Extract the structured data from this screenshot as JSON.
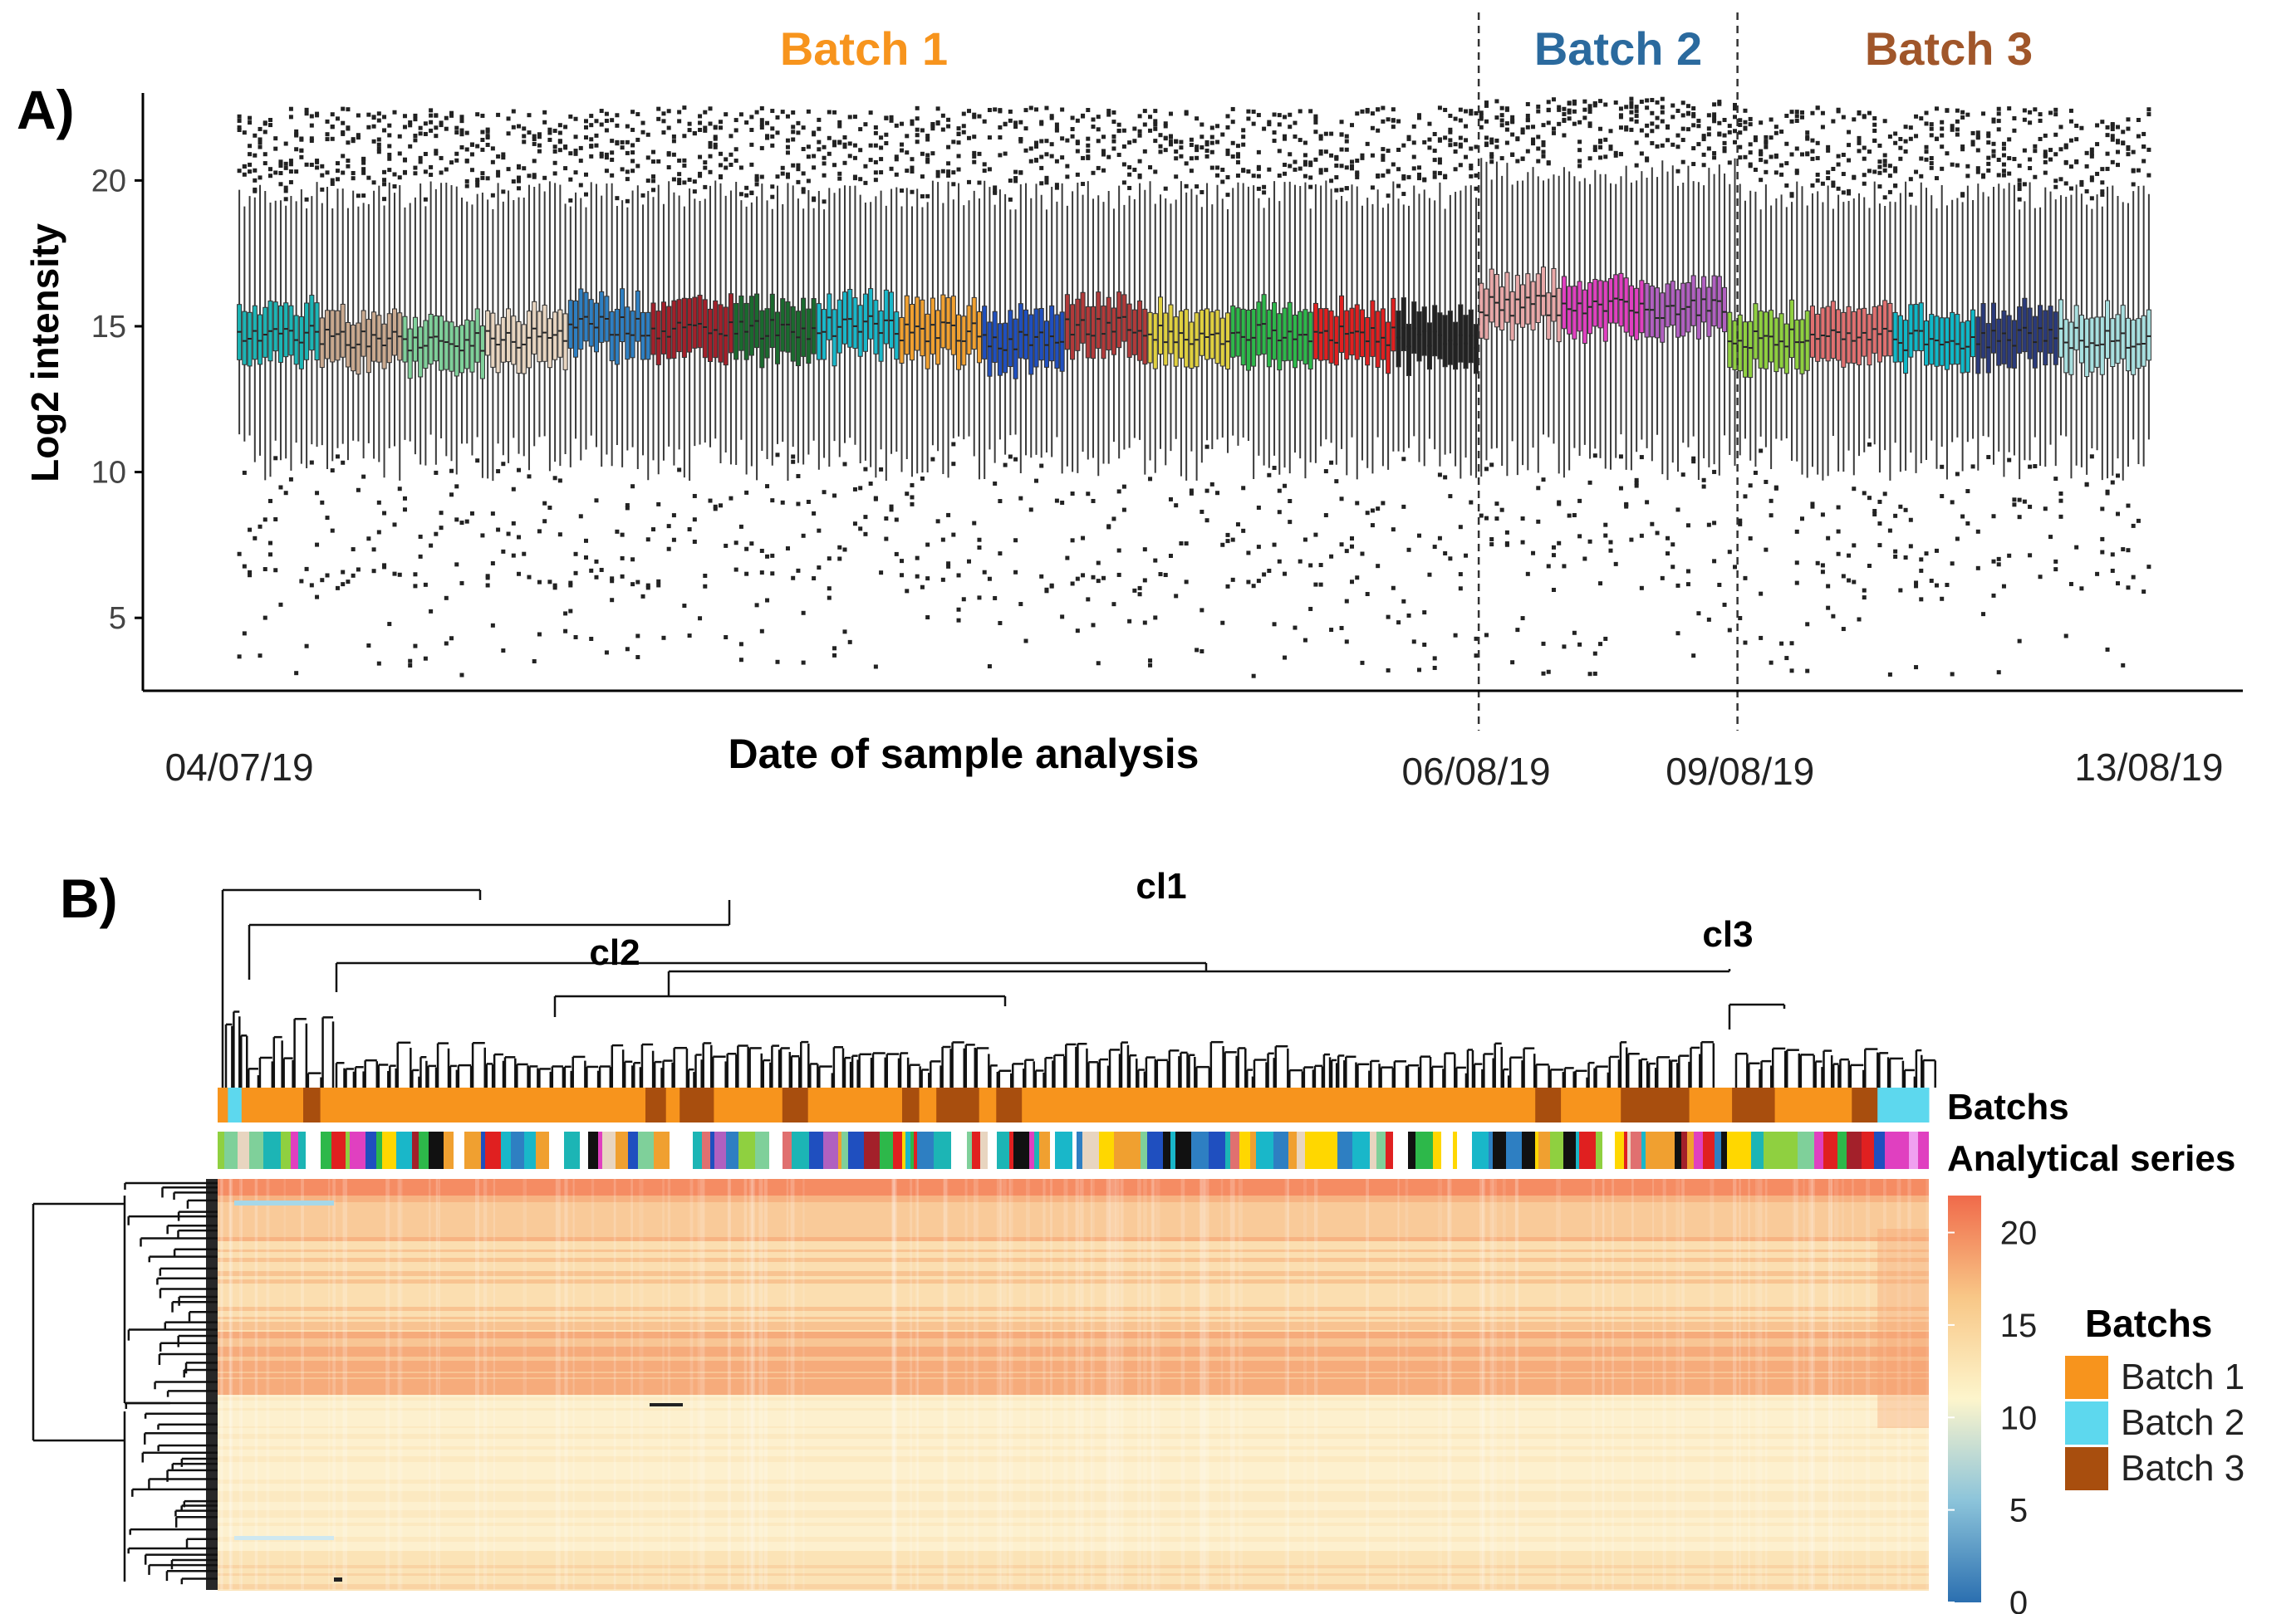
{
  "panels": {
    "a_label": "A)",
    "b_label": "B)"
  },
  "chart_data": [
    {
      "type": "box",
      "panel": "A)",
      "ylabel": "Log2 intensity",
      "xlabel": "Date of sample analysis",
      "ylim": [
        2.5,
        23
      ],
      "yticks": [
        5,
        10,
        15,
        20
      ],
      "grid": false,
      "x_date_labels": [
        {
          "label": "04/07/19",
          "sample_index": 0
        },
        {
          "label": "06/08/19",
          "sample_index": 239
        },
        {
          "label": "09/08/19",
          "sample_index": 290
        },
        {
          "label": "13/08/19",
          "sample_index": 369
        }
      ],
      "batches": [
        {
          "name": "Batch 1",
          "color": "#F7941D",
          "start": 0,
          "end": 240
        },
        {
          "name": "Batch 2",
          "color": "#2B6A9E",
          "start": 240,
          "end": 290
        },
        {
          "name": "Batch 3",
          "color": "#A0562A",
          "start": 290,
          "end": 370
        }
      ],
      "batch_boundaries": [
        240,
        290
      ],
      "series_groups": [
        {
          "color": "#1CB5B5",
          "count": 16,
          "median": 14.7,
          "q1": 13.8,
          "q3": 15.6
        },
        {
          "color": "#C9A98F",
          "count": 16,
          "median": 14.6,
          "q1": 13.7,
          "q3": 15.4
        },
        {
          "color": "#7FD09A",
          "count": 16,
          "median": 14.5,
          "q1": 13.6,
          "q3": 15.3
        },
        {
          "color": "#E8D5C0",
          "count": 16,
          "median": 14.6,
          "q1": 13.7,
          "q3": 15.4
        },
        {
          "color": "#2E7FC2",
          "count": 16,
          "median": 15.0,
          "q1": 14.1,
          "q3": 15.9
        },
        {
          "color": "#A3202A",
          "count": 16,
          "median": 14.8,
          "q1": 13.9,
          "q3": 15.7
        },
        {
          "color": "#1A6A2E",
          "count": 16,
          "median": 14.9,
          "q1": 14.0,
          "q3": 15.8
        },
        {
          "color": "#19B7C9",
          "count": 16,
          "median": 15.0,
          "q1": 14.1,
          "q3": 15.9
        },
        {
          "color": "#F0A030",
          "count": 16,
          "median": 14.8,
          "q1": 13.9,
          "q3": 15.7
        },
        {
          "color": "#1F4FBF",
          "count": 16,
          "median": 14.5,
          "q1": 13.6,
          "q3": 15.4
        },
        {
          "color": "#B23A3A",
          "count": 16,
          "median": 15.0,
          "q1": 14.1,
          "q3": 15.9
        },
        {
          "color": "#E0D040",
          "count": 16,
          "median": 14.7,
          "q1": 13.8,
          "q3": 15.6
        },
        {
          "color": "#2DB84A",
          "count": 16,
          "median": 14.8,
          "q1": 13.9,
          "q3": 15.7
        },
        {
          "color": "#E02020",
          "count": 16,
          "median": 14.7,
          "q1": 13.8,
          "q3": 15.6
        },
        {
          "color": "#222222",
          "count": 16,
          "median": 14.6,
          "q1": 13.7,
          "q3": 15.5
        },
        {
          "color": "#E8A8A8",
          "count": 16,
          "median": 15.7,
          "q1": 14.9,
          "q3": 16.6
        },
        {
          "color": "#E040C0",
          "count": 16,
          "median": 15.7,
          "q1": 14.8,
          "q3": 16.6
        },
        {
          "color": "#B060C0",
          "count": 16,
          "median": 15.6,
          "q1": 14.8,
          "q3": 16.5
        },
        {
          "color": "#8FD040",
          "count": 16,
          "median": 14.6,
          "q1": 13.6,
          "q3": 15.5
        },
        {
          "color": "#E07070",
          "count": 16,
          "median": 14.6,
          "q1": 13.7,
          "q3": 15.5
        },
        {
          "color": "#10B8C8",
          "count": 16,
          "median": 14.5,
          "q1": 13.7,
          "q3": 15.4
        },
        {
          "color": "#2A3A7A",
          "count": 16,
          "median": 14.6,
          "q1": 13.7,
          "q3": 15.5
        },
        {
          "color": "#A8E0E0",
          "count": 18,
          "median": 14.6,
          "q1": 13.7,
          "q3": 15.5
        }
      ],
      "whisker_low": 10.5,
      "whisker_high": 19.5,
      "outlier_range_high": [
        19.5,
        22.5
      ],
      "outlier_range_low": [
        3,
        10
      ]
    },
    {
      "type": "heatmap",
      "panel": "B)",
      "clusters": [
        "cl1",
        "cl2",
        "cl3"
      ],
      "annotation_rows": [
        "Batchs",
        "Analytical series"
      ],
      "colorbar": {
        "ticks": [
          0,
          5,
          10,
          15,
          20
        ],
        "min": 0,
        "max": 22,
        "colors": [
          "#2B6FB0",
          "#8CC4DA",
          "#FDF5CC",
          "#F8C787",
          "#F06A4A"
        ]
      },
      "legend": {
        "title": "Batchs",
        "items": [
          {
            "label": "Batch 1",
            "color": "#F7941D"
          },
          {
            "label": "Batch 2",
            "color": "#5DD8EE"
          },
          {
            "label": "Batch 3",
            "color": "#A84E0E"
          }
        ]
      },
      "batch_segments": [
        {
          "batch": "Batch 1",
          "start": 0.0,
          "end": 0.006
        },
        {
          "batch": "Batch 2",
          "start": 0.006,
          "end": 0.014
        },
        {
          "batch": "Batch 1",
          "start": 0.014,
          "end": 0.05
        },
        {
          "batch": "Batch 3",
          "start": 0.05,
          "end": 0.06
        },
        {
          "batch": "Batch 1",
          "start": 0.06,
          "end": 0.25
        },
        {
          "batch": "Batch 3",
          "start": 0.25,
          "end": 0.262
        },
        {
          "batch": "Batch 1",
          "start": 0.262,
          "end": 0.27
        },
        {
          "batch": "Batch 3",
          "start": 0.27,
          "end": 0.29
        },
        {
          "batch": "Batch 1",
          "start": 0.29,
          "end": 0.33
        },
        {
          "batch": "Batch 3",
          "start": 0.33,
          "end": 0.345
        },
        {
          "batch": "Batch 1",
          "start": 0.345,
          "end": 0.4
        },
        {
          "batch": "Batch 3",
          "start": 0.4,
          "end": 0.41
        },
        {
          "batch": "Batch 1",
          "start": 0.41,
          "end": 0.42
        },
        {
          "batch": "Batch 3",
          "start": 0.42,
          "end": 0.445
        },
        {
          "batch": "Batch 1",
          "start": 0.445,
          "end": 0.455
        },
        {
          "batch": "Batch 3",
          "start": 0.455,
          "end": 0.47
        },
        {
          "batch": "Batch 1",
          "start": 0.47,
          "end": 0.77
        },
        {
          "batch": "Batch 3",
          "start": 0.77,
          "end": 0.785
        },
        {
          "batch": "Batch 1",
          "start": 0.785,
          "end": 0.82
        },
        {
          "batch": "Batch 3",
          "start": 0.82,
          "end": 0.86
        },
        {
          "batch": "Batch 1",
          "start": 0.86,
          "end": 0.885
        },
        {
          "batch": "Batch 3",
          "start": 0.885,
          "end": 0.91
        },
        {
          "batch": "Batch 1",
          "start": 0.91,
          "end": 0.955
        },
        {
          "batch": "Batch 3",
          "start": 0.955,
          "end": 0.97
        },
        {
          "batch": "Batch 2",
          "start": 0.97,
          "end": 1.0
        }
      ],
      "series_palette": [
        "#2E7FC2",
        "#E040C0",
        "#8FD040",
        "#E02020",
        "#111111",
        "#19B7C9",
        "#F0A030",
        "#1F4FBF",
        "#A3202A",
        "#2DB84A",
        "#E8D5C0",
        "#FFD700",
        "#7FD09A",
        "#B060C0",
        "#1CB5B5",
        "#E07070"
      ]
    }
  ]
}
